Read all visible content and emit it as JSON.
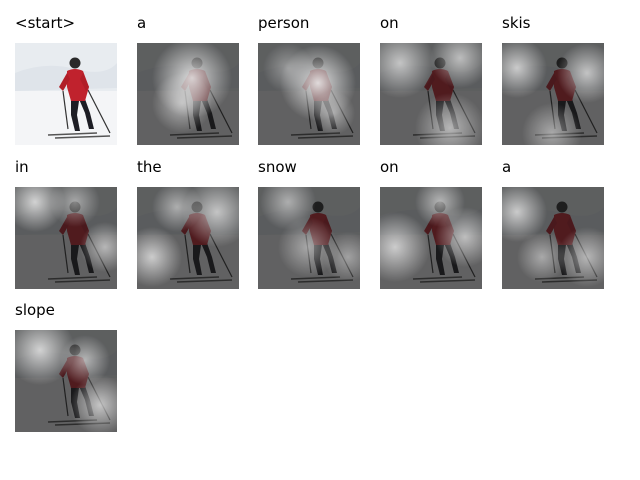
{
  "figure": {
    "cells": [
      {
        "word": "<start>",
        "kind": "original"
      },
      {
        "word": "a",
        "kind": "attention"
      },
      {
        "word": "person",
        "kind": "attention"
      },
      {
        "word": "on",
        "kind": "attention"
      },
      {
        "word": "skis",
        "kind": "attention"
      },
      {
        "word": "in",
        "kind": "attention"
      },
      {
        "word": "the",
        "kind": "attention"
      },
      {
        "word": "snow",
        "kind": "attention"
      },
      {
        "word": "on",
        "kind": "attention"
      },
      {
        "word": "a",
        "kind": "attention"
      },
      {
        "word": "slope",
        "kind": "attention"
      }
    ]
  }
}
